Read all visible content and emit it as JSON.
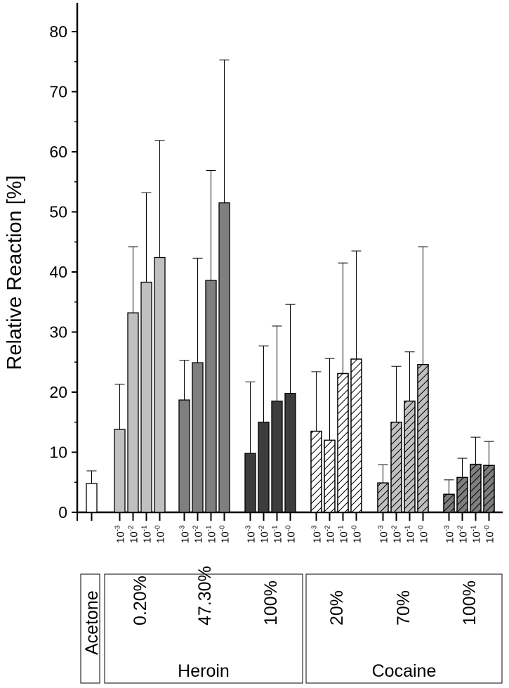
{
  "chart_data": {
    "type": "bar",
    "ylabel": "Relative Reaction [%]",
    "ylim": [
      0,
      85
    ],
    "yticks": [
      0,
      10,
      20,
      30,
      40,
      50,
      60,
      70,
      80
    ],
    "error_bars": "upper",
    "groups": [
      {
        "substance": "Acetone",
        "purity": "",
        "fill": "#ffffff",
        "hatch": false,
        "bars": [
          {
            "conc": "",
            "value": 4.8,
            "error": 2.1
          }
        ]
      },
      {
        "substance": "Heroin",
        "purity": "0.20%",
        "fill": "#c0c0c0",
        "hatch": false,
        "bars": [
          {
            "conc": "10-3",
            "value": 13.8,
            "error": 7.5
          },
          {
            "conc": "10-2",
            "value": 33.2,
            "error": 11.0
          },
          {
            "conc": "10-1",
            "value": 38.3,
            "error": 14.9
          },
          {
            "conc": "10-0",
            "value": 42.4,
            "error": 19.5
          }
        ]
      },
      {
        "substance": "Heroin",
        "purity": "47.30%",
        "fill": "#7f7f7f",
        "hatch": false,
        "bars": [
          {
            "conc": "10-3",
            "value": 18.7,
            "error": 6.6
          },
          {
            "conc": "10-2",
            "value": 24.9,
            "error": 17.4
          },
          {
            "conc": "10-1",
            "value": 38.6,
            "error": 18.3
          },
          {
            "conc": "10-0",
            "value": 51.5,
            "error": 23.8
          }
        ]
      },
      {
        "substance": "Heroin",
        "purity": "100%",
        "fill": "#3d3d3d",
        "hatch": false,
        "bars": [
          {
            "conc": "10-3",
            "value": 9.8,
            "error": 11.9
          },
          {
            "conc": "10-2",
            "value": 15.0,
            "error": 12.7
          },
          {
            "conc": "10-1",
            "value": 18.5,
            "error": 12.5
          },
          {
            "conc": "10-0",
            "value": 19.8,
            "error": 14.8
          }
        ]
      },
      {
        "substance": "Cocaine",
        "purity": "20%",
        "fill": "#ffffff",
        "hatch": true,
        "bars": [
          {
            "conc": "10-3",
            "value": 13.5,
            "error": 9.9
          },
          {
            "conc": "10-2",
            "value": 12.0,
            "error": 13.6
          },
          {
            "conc": "10-1",
            "value": 23.1,
            "error": 18.4
          },
          {
            "conc": "10-0",
            "value": 25.5,
            "error": 18.0
          }
        ]
      },
      {
        "substance": "Cocaine",
        "purity": "70%",
        "fill": "#c0c0c0",
        "hatch": true,
        "bars": [
          {
            "conc": "10-3",
            "value": 4.9,
            "error": 3.0
          },
          {
            "conc": "10-2",
            "value": 15.0,
            "error": 9.3
          },
          {
            "conc": "10-1",
            "value": 18.5,
            "error": 8.2
          },
          {
            "conc": "10-0",
            "value": 24.6,
            "error": 19.6
          }
        ]
      },
      {
        "substance": "Cocaine",
        "purity": "100%",
        "fill": "#7f7f7f",
        "hatch": true,
        "bars": [
          {
            "conc": "10-3",
            "value": 3.0,
            "error": 2.4
          },
          {
            "conc": "10-2",
            "value": 5.8,
            "error": 3.2
          },
          {
            "conc": "10-1",
            "value": 8.0,
            "error": 4.5
          },
          {
            "conc": "10-0",
            "value": 7.8,
            "error": 4.0
          }
        ]
      }
    ],
    "category_boxes": [
      {
        "label": "Acetone",
        "groups": [
          0
        ]
      },
      {
        "label": "Heroin",
        "groups": [
          1,
          2,
          3
        ]
      },
      {
        "label": "Cocaine",
        "groups": [
          4,
          5,
          6
        ]
      }
    ]
  }
}
